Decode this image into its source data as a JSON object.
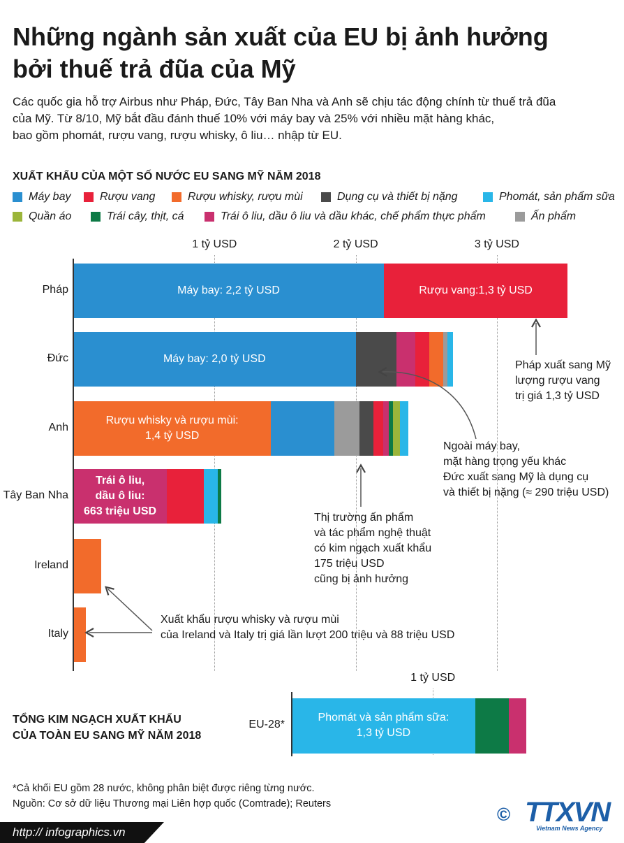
{
  "header": {
    "title": "Những ngành sản xuất của EU bị ảnh hưởng\nbởi thuế trả đũa của Mỹ",
    "subtitle": "Các quốc gia hỗ trợ Airbus như Pháp, Đức, Tây Ban Nha và Anh sẽ chịu tác động chính từ thuế trả đũa\ncủa Mỹ. Từ 8/10, Mỹ bắt đầu đánh thuế 10% với máy bay và 25% với nhiều mặt hàng khác,\nbao gồm phomát, rượu vang, rượu whisky, ô liu… nhập từ EU."
  },
  "chart_data": [
    {
      "type": "stacked-bar",
      "title": "XUẤT KHẨU CỦA MỘT SỐ NƯỚC EU SANG MỸ NĂM 2018",
      "series": [
        {
          "name": "Máy bay",
          "color": "#2a8fd0"
        },
        {
          "name": "Rượu vang",
          "color": "#e8213a"
        },
        {
          "name": "Rượu whisky, rượu mùi",
          "color": "#f26b2b"
        },
        {
          "name": "Dụng cụ và thiết bị nặng",
          "color": "#4a4a4a"
        },
        {
          "name": "Phomát, sản phẩm sữa",
          "color": "#29b6e8"
        },
        {
          "name": "Quần áo",
          "color": "#9bb53a"
        },
        {
          "name": "Trái cây, thịt, cá",
          "color": "#0d7a46"
        },
        {
          "name": "Trái ô liu, dầu ô liu và dầu khác, chế phẩm thực phẩm",
          "color": "#c9306e"
        },
        {
          "name": "Ấn phẩm",
          "color": "#9b9b9b"
        }
      ],
      "categories": [
        "Pháp",
        "Đức",
        "Anh",
        "Tây Ban Nha",
        "Ireland",
        "Italy"
      ],
      "bars": [
        {
          "segments": [
            {
              "series": 0,
              "value": 2.2,
              "value_label": "Máy bay: 2,2 tỷ USD"
            },
            {
              "series": 1,
              "value": 1.3,
              "value_label": "Rượu vang:1,3 tỷ USD"
            }
          ]
        },
        {
          "segments": [
            {
              "series": 0,
              "value": 2.0,
              "value_label": "Máy bay: 2,0 tỷ USD"
            },
            {
              "series": 3,
              "value": 0.29
            },
            {
              "series": 7,
              "value": 0.13
            },
            {
              "series": 1,
              "value": 0.1
            },
            {
              "series": 2,
              "value": 0.1
            },
            {
              "series": 8,
              "value": 0.03
            },
            {
              "series": 4,
              "value": 0.04
            }
          ]
        },
        {
          "segments": [
            {
              "series": 2,
              "value": 1.4,
              "value_label": "Rượu whisky và rượu mùi:\n1,4 tỷ USD"
            },
            {
              "series": 0,
              "value": 0.45
            },
            {
              "series": 8,
              "value": 0.175
            },
            {
              "series": 3,
              "value": 0.1
            },
            {
              "series": 1,
              "value": 0.07
            },
            {
              "series": 7,
              "value": 0.04
            },
            {
              "series": 6,
              "value": 0.03
            },
            {
              "series": 5,
              "value": 0.05
            },
            {
              "series": 4,
              "value": 0.06
            }
          ]
        },
        {
          "segments": [
            {
              "series": 7,
              "value": 0.663,
              "value_label": "Trái ô liu,\ndầu ô liu:\n663 triệu USD"
            },
            {
              "series": 1,
              "value": 0.26
            },
            {
              "series": 4,
              "value": 0.1
            },
            {
              "series": 6,
              "value": 0.025
            }
          ]
        },
        {
          "segments": [
            {
              "series": 2,
              "value": 0.2
            }
          ]
        },
        {
          "segments": [
            {
              "series": 2,
              "value": 0.088
            }
          ]
        }
      ],
      "xlim": [
        0,
        3.9
      ],
      "xticks": [
        {
          "value": 1,
          "label": "1 tỷ USD"
        },
        {
          "value": 2,
          "label": "2 tỷ USD"
        },
        {
          "value": 3,
          "label": "3 tỷ USD"
        }
      ],
      "grid": true,
      "annotations": [
        "Pháp xuất sang Mỹ\nlượng rượu vang\ntrị giá 1,3 tỷ USD",
        "Ngoài máy bay,\nmặt hàng trọng yếu khác\nĐức xuất sang Mỹ là dụng cụ\nvà thiết bị nặng (≈ 290 triệu USD)",
        "Thị trường ấn phẩm\nvà tác phẩm nghệ thuật\ncó kim ngạch xuất khẩu\n175 triệu USD\ncũng bị ảnh hưởng",
        "Xuất khẩu rượu whisky và rượu mùi\ncủa Ireland và Italy trị giá lần lượt 200 triệu và 88 triệu USD"
      ]
    },
    {
      "type": "stacked-bar",
      "title": "TỔNG KIM NGẠCH XUẤT KHẨU\nCỦA TOÀN EU SANG MỸ NĂM 2018",
      "categories": [
        "EU-28*"
      ],
      "series": [
        {
          "name": "Phomát, sản phẩm sữa",
          "color": "#29b6e8"
        },
        {
          "name": "Trái cây, thịt, cá",
          "color": "#0d7a46"
        },
        {
          "name": "Trái ô liu, dầu ô liu và dầu khác, chế phẩm thực phẩm",
          "color": "#c9306e"
        }
      ],
      "bars": [
        {
          "segments": [
            {
              "series": 0,
              "value": 1.3,
              "value_label": "Phomát và sản phẩm sữa:\n1,3 tỷ USD"
            },
            {
              "series": 1,
              "value": 0.24
            },
            {
              "series": 2,
              "value": 0.12
            }
          ]
        }
      ],
      "xlim": [
        0,
        2.3
      ],
      "xticks": [
        {
          "value": 1,
          "label": "1 tỷ USD"
        }
      ]
    }
  ],
  "footer": {
    "notes": [
      "*Cả khối EU gồm 28 nước, không phân biệt được riêng từng nước.",
      "Nguồn: Cơ sở dữ liệu Thương mại Liên hợp quốc (Comtrade); Reuters"
    ],
    "url": "http:// infographics.vn",
    "logo": "TTXVN",
    "logo_sub": "Vietnam News Agency",
    "copyright": "©"
  }
}
